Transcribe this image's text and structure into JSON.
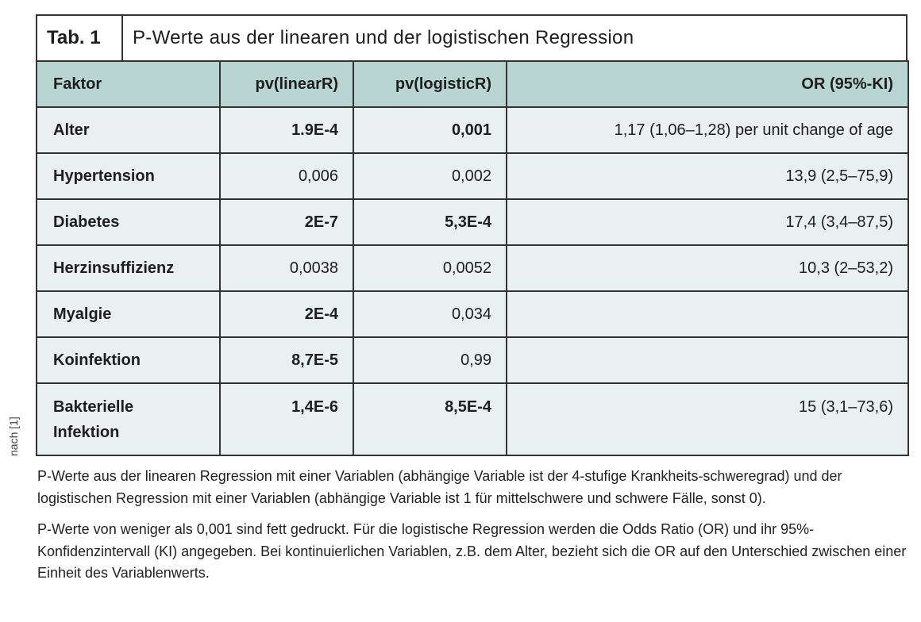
{
  "side_note": "nach [1]",
  "table": {
    "label": "Tab. 1",
    "title": "P-Werte aus der linearen und der logistischen Regression",
    "header": [
      "Faktor",
      "pv(linearR)",
      "pv(logisticR)",
      "OR (95%-KI)"
    ],
    "rows": [
      {
        "cells": [
          "Alter",
          "1.9E-4",
          "0,001",
          "1,17 (1,06–1,28) per unit change of age"
        ],
        "bold": [
          true,
          true,
          true,
          false
        ]
      },
      {
        "cells": [
          "Hypertension",
          "0,006",
          "0,002",
          "13,9 (2,5–75,9)"
        ],
        "bold": [
          true,
          false,
          false,
          false
        ]
      },
      {
        "cells": [
          "Diabetes",
          "2E-7",
          "5,3E-4",
          "17,4 (3,4–87,5)"
        ],
        "bold": [
          true,
          true,
          true,
          false
        ]
      },
      {
        "cells": [
          "Herzinsuffizienz",
          "0,0038",
          "0,0052",
          "10,3 (2–53,2)"
        ],
        "bold": [
          true,
          false,
          false,
          false
        ]
      },
      {
        "cells": [
          "Myalgie",
          "2E-4",
          "0,034"
        ],
        "bold": [
          true,
          true,
          false
        ]
      },
      {
        "cells": [
          "Koinfektion",
          "8,7E-5",
          "0,99"
        ],
        "bold": [
          true,
          true,
          false
        ]
      },
      {
        "cells": [
          "Bakterielle Infektion",
          "1,4E-6",
          "8,5E-4",
          "15 (3,1–73,6)"
        ],
        "bold": [
          true,
          true,
          true,
          false
        ]
      }
    ]
  },
  "notes": [
    "P-Werte aus der linearen Regression mit einer Variablen (abhängige Variable ist der 4-stufige Krankheits-schweregrad) und der logistischen Regression mit einer Variablen (abhängige Variable ist 1 für mittelschwere und schwere Fälle, sonst 0).",
    "P-Werte von weniger als 0,001 sind fett gedruckt. Für die logistische Regression werden die Odds Ratio (OR) und ihr 95%-Konfidenzintervall (KI) angegeben. Bei kontinuierlichen Variablen, z.B. dem Alter, bezieht sich die OR auf den Unterschied zwischen einer Einheit des Variablenwerts."
  ]
}
